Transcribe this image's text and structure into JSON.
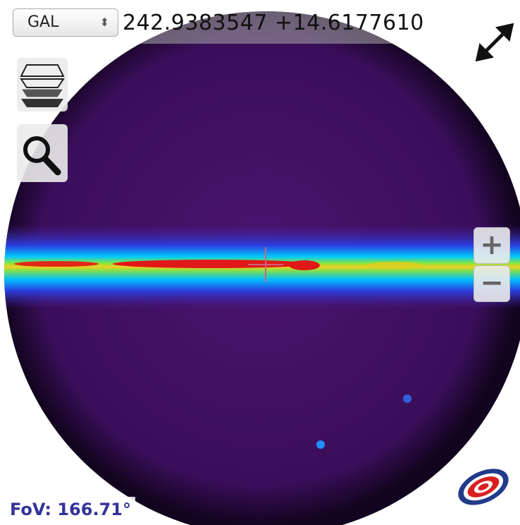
{
  "frame_selector": {
    "value": "GAL"
  },
  "coordinates": "242.9383547 +14.6177610",
  "zoom": {
    "in": "+",
    "out": "−"
  },
  "fov": "FoV: 166.71°"
}
